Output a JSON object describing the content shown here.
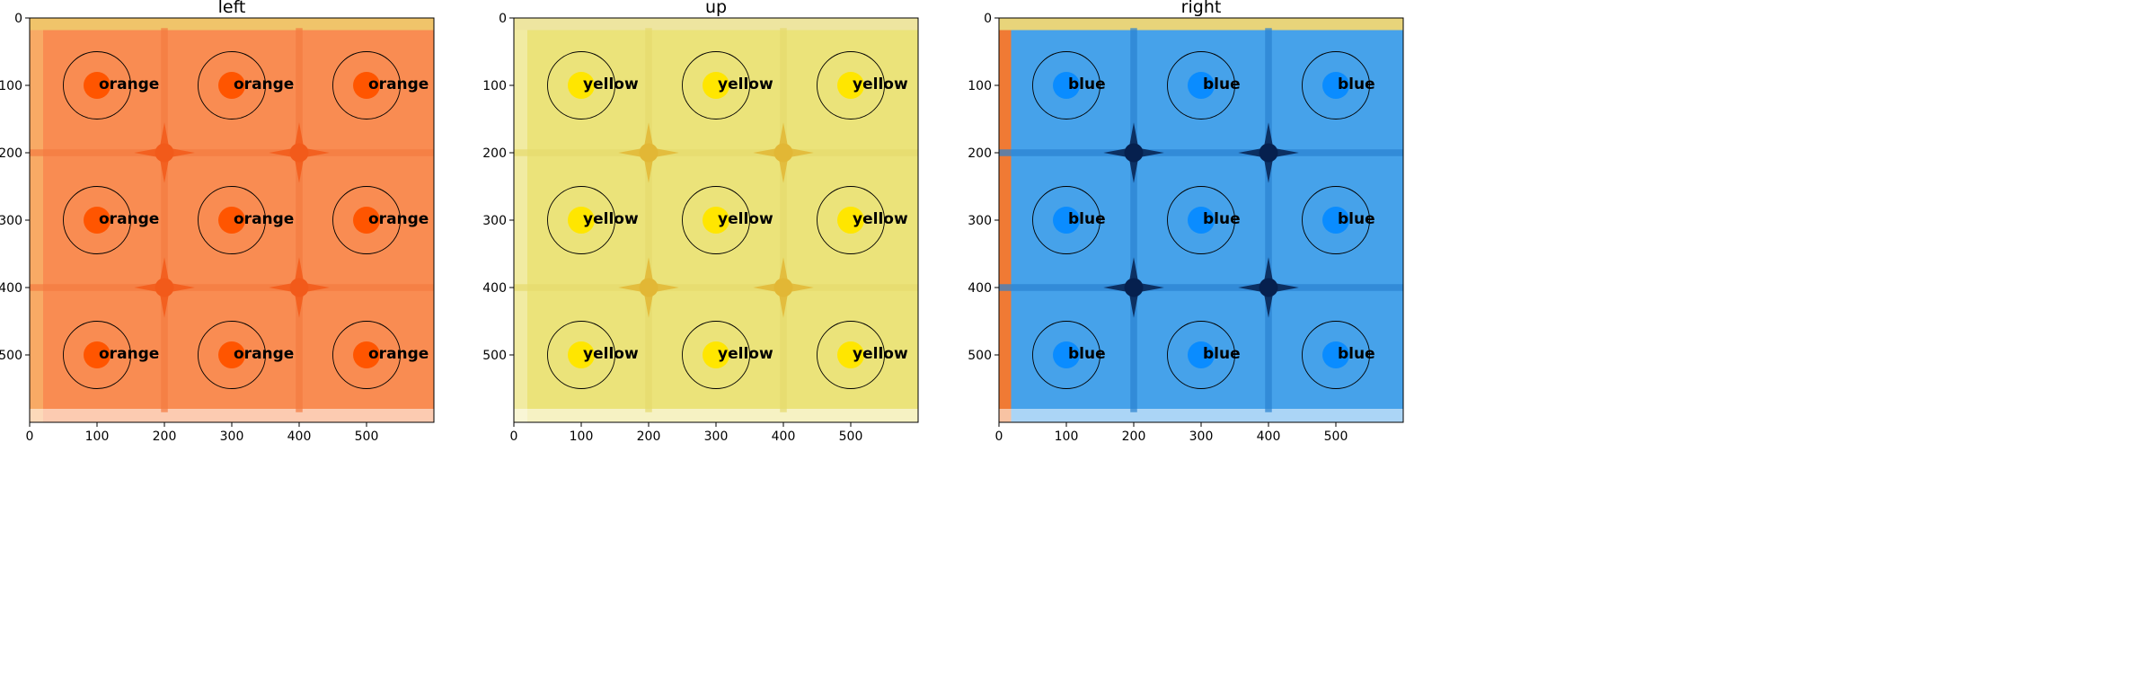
{
  "figure": {
    "panels": [
      {
        "title": "left",
        "label": "orange",
        "colors": {
          "bg": "#f98c52",
          "seam": "#f47a40",
          "star": "#f25a1a",
          "edge": "#f7b26a",
          "top_band": "#f0c46a",
          "dot": "#ff5500"
        },
        "stars": [
          [
            200,
            200
          ],
          [
            400,
            200
          ],
          [
            200,
            400
          ],
          [
            400,
            400
          ]
        ]
      },
      {
        "title": "up",
        "label": "yellow",
        "colors": {
          "bg": "#ebe37a",
          "seam": "#e6da6e",
          "star": "#e2b735",
          "edge": "#f2ecad",
          "top_band": "#eee5a0",
          "dot": "#ffe600"
        },
        "stars": [
          [
            200,
            200
          ],
          [
            400,
            200
          ],
          [
            200,
            400
          ],
          [
            400,
            400
          ]
        ]
      },
      {
        "title": "right",
        "label": "blue",
        "colors": {
          "bg": "#46a2ea",
          "seam": "#2a82d0",
          "star": "#06204e",
          "edge": "#f07a34",
          "top_band": "#e8d47a",
          "dot": "#0a8cff"
        },
        "stars": [
          [
            200,
            200
          ],
          [
            400,
            200
          ],
          [
            200,
            400
          ],
          [
            400,
            400
          ]
        ]
      }
    ],
    "x_ticks": [
      0,
      100,
      200,
      300,
      400,
      500
    ],
    "y_ticks": [
      0,
      100,
      200,
      300,
      400,
      500
    ],
    "grid_points": [
      [
        100,
        100
      ],
      [
        300,
        100
      ],
      [
        500,
        100
      ],
      [
        100,
        300
      ],
      [
        300,
        300
      ],
      [
        500,
        300
      ],
      [
        100,
        500
      ],
      [
        300,
        500
      ],
      [
        500,
        500
      ]
    ],
    "image_extent": [
      0,
      600
    ]
  }
}
